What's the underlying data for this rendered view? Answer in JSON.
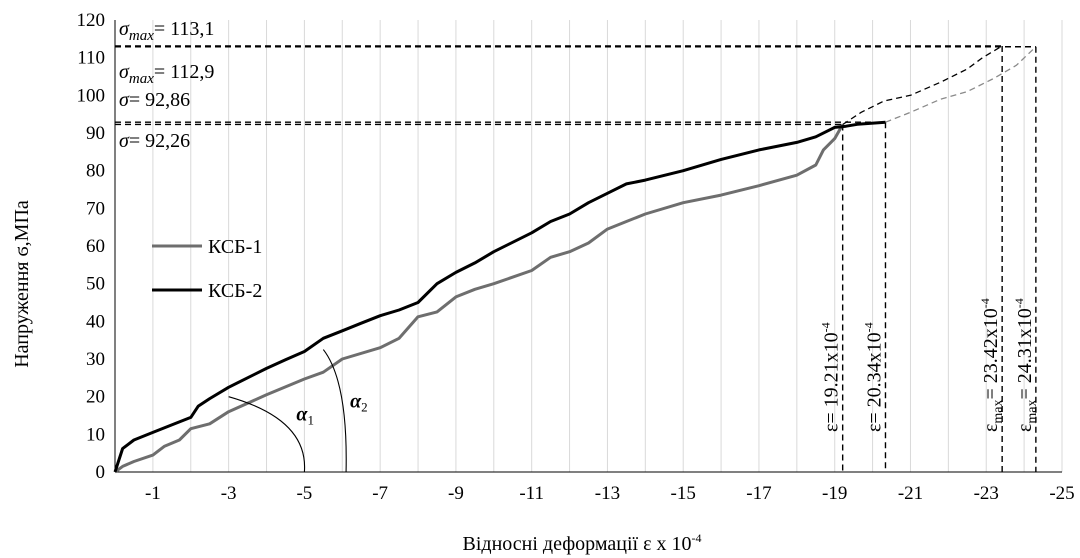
{
  "chart_data": {
    "type": "line",
    "xlabel": "Відносні деформації ε x 10",
    "xlabel_sup": "-4",
    "ylabel": "Напруження ϭ,МПа",
    "xlim": [
      0,
      -25
    ],
    "ylim": [
      0,
      120
    ],
    "x_ticks": [
      -1,
      -3,
      -5,
      -7,
      -9,
      -11,
      -13,
      -15,
      -17,
      -19,
      -21,
      -23,
      -25
    ],
    "y_ticks": [
      0,
      10,
      20,
      30,
      40,
      50,
      60,
      70,
      80,
      90,
      100,
      110,
      120
    ],
    "grid": "vertical",
    "legend_position": "left-middle",
    "series": [
      {
        "name": "КСБ-1",
        "color": "#6e6e6e",
        "x": [
          0,
          -0.2,
          -0.5,
          -1,
          -1.3,
          -1.7,
          -2,
          -2.5,
          -3,
          -4,
          -5,
          -5.5,
          -6,
          -7,
          -7.5,
          -8,
          -8.5,
          -9,
          -9.5,
          -10,
          -11,
          -11.5,
          -12,
          -12.5,
          -13,
          -13.5,
          -14,
          -15,
          -16,
          -17,
          -18,
          -18.5,
          -18.7,
          -19,
          -19.21
        ],
        "y": [
          0,
          1.5,
          2.8,
          4.5,
          6.8,
          8.5,
          11.5,
          12.8,
          16,
          20.5,
          24.7,
          26.5,
          30,
          33,
          35.5,
          41.2,
          42.5,
          46.5,
          48.5,
          50,
          53.5,
          57,
          58.5,
          60.8,
          64.5,
          66.5,
          68.5,
          71.5,
          73.5,
          76,
          78.8,
          81.5,
          85.5,
          88.5,
          92.26
        ]
      },
      {
        "name": "КСБ-2",
        "color": "#000000",
        "x": [
          0,
          -0.2,
          -0.5,
          -1,
          -1.5,
          -2,
          -2.2,
          -2.5,
          -3,
          -3.5,
          -4,
          -4.5,
          -5,
          -5.5,
          -6,
          -6.5,
          -7,
          -7.5,
          -8,
          -8.5,
          -9,
          -9.5,
          -10,
          -11,
          -11.5,
          -12,
          -12.5,
          -13,
          -13.5,
          -14,
          -15,
          -16,
          -17,
          -18,
          -18.5,
          -19,
          -19.3,
          -19.6,
          -20.34
        ],
        "y": [
          0,
          6.2,
          8.5,
          10.5,
          12.5,
          14.5,
          17.5,
          19.5,
          22.5,
          25,
          27.5,
          29.8,
          32,
          35.5,
          37.5,
          39.5,
          41.5,
          43,
          45,
          50,
          53,
          55.5,
          58.5,
          63.5,
          66.5,
          68.5,
          71.5,
          74,
          76.5,
          77.5,
          80,
          83,
          85.5,
          87.5,
          89,
          91.5,
          91.8,
          92.3,
          92.86
        ]
      },
      {
        "name": "",
        "color": "#000000",
        "dashed": true,
        "x": [
          -19.21,
          -19.7,
          -20.3,
          -21.0,
          -21.8,
          -22.5,
          -22.9,
          -23.42
        ],
        "y": [
          92.26,
          95.5,
          98.5,
          100,
          103.5,
          107,
          110,
          113.1
        ]
      },
      {
        "name": "",
        "color": "#8a8a8a",
        "dashed": true,
        "x": [
          -20.34,
          -21.0,
          -21.8,
          -22.5,
          -23.2,
          -23.8,
          -24.31
        ],
        "y": [
          92.86,
          95.5,
          99,
          101,
          104.5,
          108,
          112.9
        ]
      }
    ],
    "annotations": {
      "sigma_max_1": {
        "label": "σmax= 113,1",
        "value": 113.1,
        "x": -23.42
      },
      "sigma_max_2": {
        "label": "σmax= 112,9",
        "value": 112.9,
        "x": -24.31
      },
      "sigma_1": {
        "label": "σ= 92,86",
        "value": 92.86,
        "x": -20.34
      },
      "sigma_2": {
        "label": "σ= 92,26",
        "value": 92.26,
        "x": -19.21
      },
      "eps_1": {
        "label": "ε= 19.21x10",
        "sup": "-4",
        "x": -19.21
      },
      "eps_2": {
        "label": "ε= 20.34x10",
        "sup": "-4",
        "x": -20.34
      },
      "eps_max_1": {
        "label": "εmax= 23.42x10",
        "sup": "-4",
        "x": -23.42
      },
      "eps_max_2": {
        "label": "εmax= 24.31x10",
        "sup": "-4",
        "x": -24.31
      },
      "alpha_1": {
        "label": "α1",
        "x": -5
      },
      "alpha_2": {
        "label": "α2",
        "x": -6.1
      }
    }
  }
}
